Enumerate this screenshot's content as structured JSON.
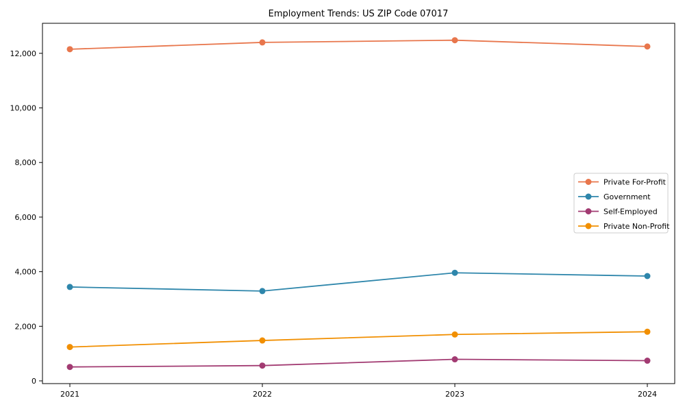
{
  "chart_data": {
    "type": "line",
    "title": "Employment Trends: US ZIP Code 07017",
    "xlabel": "",
    "ylabel": "",
    "categories": [
      "2021",
      "2022",
      "2023",
      "2024"
    ],
    "series": [
      {
        "name": "Private For-Profit",
        "color": "#E8764C",
        "values": [
          12150,
          12400,
          12480,
          12250
        ]
      },
      {
        "name": "Government",
        "color": "#2E86AB",
        "values": [
          3440,
          3290,
          3960,
          3840
        ]
      },
      {
        "name": "Self-Employed",
        "color": "#A23B72",
        "values": [
          510,
          560,
          790,
          740
        ]
      },
      {
        "name": "Private Non-Profit",
        "color": "#F18F01",
        "values": [
          1240,
          1480,
          1700,
          1800
        ]
      }
    ],
    "ylim": [
      -100,
      13100
    ],
    "yticks": [
      {
        "value": 0,
        "label": "0"
      },
      {
        "value": 2000,
        "label": "2,000"
      },
      {
        "value": 4000,
        "label": "4,000"
      },
      {
        "value": 6000,
        "label": "6,000"
      },
      {
        "value": 8000,
        "label": "8,000"
      },
      {
        "value": 10000,
        "label": "10,000"
      },
      {
        "value": 12000,
        "label": "12,000"
      }
    ],
    "grid": false,
    "legend_position": "right-center",
    "colors": {
      "background": "#ffffff",
      "spine": "#000000",
      "legend_border": "#cccccc",
      "legend_background": "#ffffff"
    }
  }
}
